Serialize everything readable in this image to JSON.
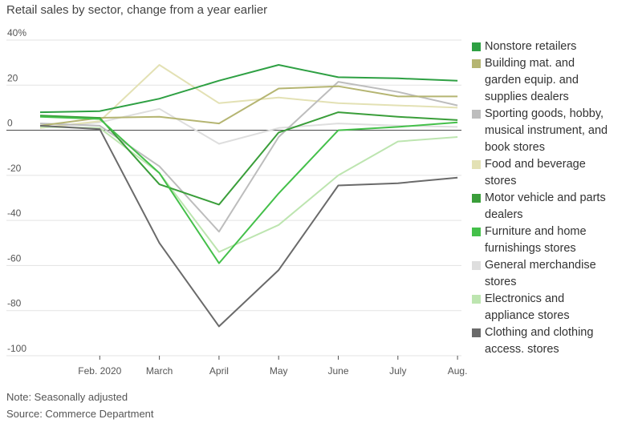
{
  "title": "Retail sales by sector, change from a year earlier",
  "note": "Note: Seasonally adjusted",
  "source": "Source: Commerce Department",
  "chart_data": {
    "type": "line",
    "title": "Retail sales by sector, change from a year earlier",
    "x": [
      "",
      "Feb. 2020",
      "March",
      "April",
      "May",
      "June",
      "July",
      "Aug."
    ],
    "ylim": [
      -100,
      40
    ],
    "y_ticks": [
      40,
      20,
      0,
      -20,
      -40,
      -60,
      -80,
      -100
    ],
    "y_tick_labels": [
      "40%",
      "20",
      "0",
      "-20",
      "-40",
      "-60",
      "-80",
      "-100"
    ],
    "grid": true,
    "legend_position": "right",
    "series": [
      {
        "name": "Nonstore retailers",
        "color": "#2ea043",
        "values": [
          8,
          8.5,
          14,
          22,
          29,
          23.5,
          23,
          22
        ]
      },
      {
        "name": "Building mat. and garden equip. and supplies dealers",
        "color": "#b5b572",
        "values": [
          2,
          5.5,
          6,
          3,
          18.5,
          19.5,
          15,
          15
        ]
      },
      {
        "name": "Sporting goods, hobby, musical instrument, and book stores",
        "color": "#bdbdbd",
        "values": [
          3,
          2,
          -16,
          -45,
          -3,
          21.5,
          17,
          11
        ]
      },
      {
        "name": "Food and beverage stores",
        "color": "#e3e1b4",
        "values": [
          1,
          4,
          29,
          12,
          14.5,
          12,
          11,
          10
        ]
      },
      {
        "name": "Motor vehicle and parts dealers",
        "color": "#3a9e3a",
        "values": [
          6.5,
          5.5,
          -24,
          -33,
          -1,
          8,
          6,
          4.5
        ]
      },
      {
        "name": "Furniture and home furnishings stores",
        "color": "#44c04a",
        "values": [
          6,
          5,
          -19,
          -59,
          -28,
          0,
          1.5,
          3.5
        ]
      },
      {
        "name": "General merchandise stores",
        "color": "#dedede",
        "values": [
          1,
          3.5,
          9.5,
          -6,
          1,
          3,
          2,
          1.5
        ]
      },
      {
        "name": "Electronics and appliance stores",
        "color": "#bde5b0",
        "values": [
          1.5,
          1,
          -19,
          -54,
          -42,
          -20,
          -5,
          -3
        ]
      },
      {
        "name": "Clothing and clothing access. stores",
        "color": "#6a6a6a",
        "values": [
          2,
          0.5,
          -50,
          -87,
          -62,
          -24.5,
          -23.5,
          -21
        ]
      }
    ]
  },
  "legend": [
    {
      "lines": [
        "Nonstore retailers"
      ]
    },
    {
      "lines": [
        "Building mat. and",
        "garden equip. and",
        "supplies dealers"
      ]
    },
    {
      "lines": [
        "Sporting goods, hobby,",
        "musical instrument, and",
        "book stores"
      ]
    },
    {
      "lines": [
        "Food and beverage",
        "stores"
      ]
    },
    {
      "lines": [
        "Motor vehicle and parts",
        "dealers"
      ]
    },
    {
      "lines": [
        "Furniture and home",
        "furnishings stores"
      ]
    },
    {
      "lines": [
        "General merchandise",
        "stores"
      ]
    },
    {
      "lines": [
        "Electronics and",
        "appliance stores"
      ]
    },
    {
      "lines": [
        "Clothing and clothing",
        "access. stores"
      ]
    }
  ]
}
